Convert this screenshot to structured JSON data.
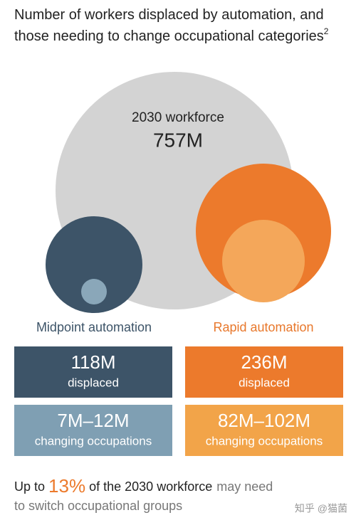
{
  "title": {
    "text": "Number of workers displaced by automation, and those needing to change occupational categories",
    "footnote": "2"
  },
  "workforce": {
    "label": "2030 workforce",
    "value": "757M"
  },
  "scenarios": [
    {
      "name": "Midpoint automation",
      "displaced": {
        "value": "118M",
        "label": "displaced"
      },
      "changing": {
        "value": "7M–12M",
        "label": "changing occupations"
      }
    },
    {
      "name": "Rapid automation",
      "displaced": {
        "value": "236M",
        "label": "displaced"
      },
      "changing": {
        "value": "82M–102M",
        "label": "changing occupations"
      }
    }
  ],
  "footer": {
    "prefix": "Up to",
    "highlight": "13%",
    "middle": "of the 2030 workforce",
    "suffix": "may need to switch occupational groups"
  },
  "watermark": "知乎 @猫菌"
}
